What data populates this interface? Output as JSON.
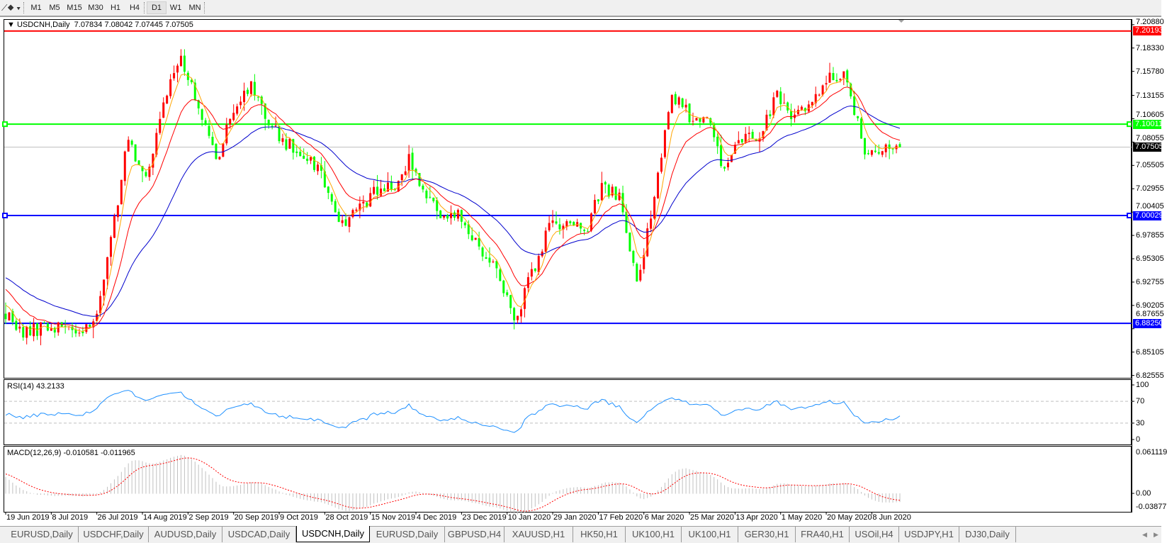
{
  "toolbar": {
    "draw_tool_icon": "line-tools-icon",
    "timeframes": [
      "M1",
      "M5",
      "M15",
      "M30",
      "H1",
      "H4",
      "D1",
      "W1",
      "MN"
    ],
    "active_timeframe": "D1"
  },
  "chart": {
    "title": "USDCNH,Daily",
    "ohlc": "7.07834 7.08042 7.07445 7.07505"
  },
  "price_axis": {
    "ticks": [
      "7.20880",
      "7.18330",
      "7.15780",
      "7.13155",
      "7.10605",
      "7.08055",
      "7.05505",
      "7.02955",
      "7.00405",
      "6.97855",
      "6.95305",
      "6.92755",
      "6.90205",
      "6.87655",
      "6.85105",
      "6.82555"
    ]
  },
  "levels": [
    {
      "price": "7.20193",
      "color": "#ff0000",
      "text_color": "#ffffff"
    },
    {
      "price": "7.10011",
      "color": "#00ff00",
      "text_color": "#ffffff"
    },
    {
      "price": "7.07505",
      "color": "#000000",
      "text_color": "#ffffff"
    },
    {
      "price": "7.00029",
      "color": "#0000ff",
      "text_color": "#ffffff"
    },
    {
      "price": "6.88250",
      "color": "#0000ff",
      "text_color": "#ffffff"
    }
  ],
  "rsi": {
    "label": "RSI(14) 43.2133",
    "ticks": [
      "100",
      "70",
      "30",
      "0"
    ]
  },
  "macd": {
    "label": "MACD(12,26,9) -0.010581 -0.011965",
    "ticks": [
      "0.061119",
      "0.00",
      "-0.03877"
    ]
  },
  "dates": [
    "19 Jun 2019",
    "8 Jul 2019",
    "26 Jul 2019",
    "14 Aug 2019",
    "2 Sep 2019",
    "20 Sep 2019",
    "9 Oct 2019",
    "28 Oct 2019",
    "15 Nov 2019",
    "4 Dec 2019",
    "23 Dec 2019",
    "10 Jan 2020",
    "29 Jan 2020",
    "17 Feb 2020",
    "6 Mar 2020",
    "25 Mar 2020",
    "13 Apr 2020",
    "1 May 2020",
    "20 May 2020",
    "8 Jun 2020"
  ],
  "tabs": [
    "EURUSD,Daily",
    "USDCHF,Daily",
    "AUDUSD,Daily",
    "USDCAD,Daily",
    "USDCNH,Daily",
    "EURUSD,Daily",
    "GBPUSD,H4",
    "XAUUSD,H1",
    "HK50,H1",
    "UK100,H1",
    "UK100,H1",
    "GER30,H1",
    "FRA40,H1",
    "USOil,H4",
    "USDJPY,H1",
    "DJ30,Daily"
  ],
  "active_tab": "USDCNH,Daily",
  "chart_data": {
    "type": "candlestick",
    "symbol": "USDCNH",
    "timeframe": "Daily",
    "ylim": [
      6.82555,
      7.2088
    ],
    "weekly_close_approx": [
      6.895,
      6.87,
      6.878,
      6.88,
      6.876,
      6.878,
      6.975,
      7.085,
      7.04,
      7.12,
      7.175,
      7.12,
      7.06,
      7.12,
      7.14,
      7.1,
      7.08,
      7.068,
      7.05,
      6.99,
      7.005,
      7.025,
      7.03,
      7.06,
      7.02,
      6.998,
      7.0,
      6.965,
      6.94,
      6.885,
      6.935,
      6.99,
      6.995,
      6.98,
      7.03,
      7.02,
      6.925,
      7.02,
      7.13,
      7.11,
      7.11,
      7.05,
      7.085,
      7.09,
      7.13,
      7.105,
      7.125,
      7.15,
      7.15,
      7.065,
      7.078,
      7.075
    ],
    "last_bar": {
      "open": 7.07834,
      "high": 7.08042,
      "low": 7.07445,
      "close": 7.07505
    },
    "rsi_last": 43.2133,
    "macd_last": {
      "main": -0.010581,
      "signal": -0.011965
    },
    "colors": {
      "up": "#ff0000",
      "down": "#00ff00",
      "ma_fast": "#ffa500",
      "ma_mid": "#ff0000",
      "ma_slow": "#0000cd",
      "rsi": "#1e90ff",
      "macd_hist": "#c0c0c0",
      "macd_signal": "#ff0000"
    }
  }
}
